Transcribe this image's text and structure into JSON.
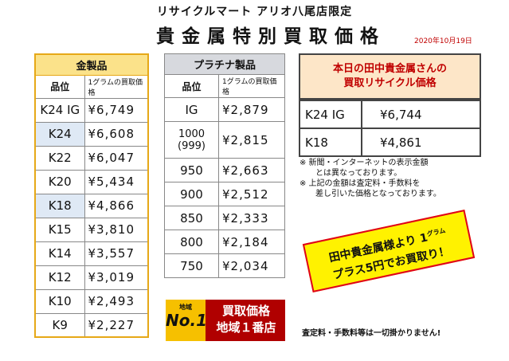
{
  "header": {
    "store": "リサイクルマート アリオ八尾店限定",
    "title": "貴金属特別買取価格",
    "date": "2020年10月19日"
  },
  "gold": {
    "title": "金製品",
    "col_grade": "品位",
    "col_price": "1グラムの買取価格",
    "rows": [
      {
        "grade": "K24 IG",
        "price": "¥6,749"
      },
      {
        "grade": "K24",
        "price": "¥6,608"
      },
      {
        "grade": "K22",
        "price": "¥6,047"
      },
      {
        "grade": "K20",
        "price": "¥5,434"
      },
      {
        "grade": "K18",
        "price": "¥4,866"
      },
      {
        "grade": "K15",
        "price": "¥3,810"
      },
      {
        "grade": "K14",
        "price": "¥3,557"
      },
      {
        "grade": "K12",
        "price": "¥3,019"
      },
      {
        "grade": "K10",
        "price": "¥2,493"
      },
      {
        "grade": "K9",
        "price": "¥2,227"
      }
    ]
  },
  "platinum": {
    "title": "プラチナ製品",
    "col_grade": "品位",
    "col_price": "1グラムの買取価格",
    "rows": [
      {
        "grade": "IG",
        "price": "¥2,879"
      },
      {
        "grade": "1000",
        "grade2": "(999)",
        "price": "¥2,815"
      },
      {
        "grade": "950",
        "price": "¥2,663"
      },
      {
        "grade": "900",
        "price": "¥2,512"
      },
      {
        "grade": "850",
        "price": "¥2,333"
      },
      {
        "grade": "800",
        "price": "¥2,184"
      },
      {
        "grade": "750",
        "price": "¥2,034"
      }
    ]
  },
  "tanaka": {
    "title_line1": "本日の田中貴金属さんの",
    "title_line2": "買取リサイクル価格",
    "rows": [
      {
        "grade": "K24 IG",
        "price": "¥6,744"
      },
      {
        "grade": "K18",
        "price": "¥4,861"
      }
    ]
  },
  "notes": {
    "line1": "※ 新聞・インターネットの表示金額",
    "line2": "とは異なっております。",
    "line3": "※ 上記の金額は査定料・手数料を",
    "line4": "差し引いた価格となっております。"
  },
  "promo": {
    "line1a": "田中貴金属様より 1",
    "unit": "グラム",
    "line2": "プラス5円でお買取り！"
  },
  "badge": {
    "small": "地域",
    "num": "No.1",
    "line1": "買取価格",
    "line2": "地域１番店"
  },
  "footer": "査定料・手数料等は一切掛かりません!",
  "colors": {
    "gold_header": "#fbe28a",
    "gold_border": "#e6a817",
    "platinum_header": "#d7d9de",
    "tanaka_bg": "#fde6c8",
    "accent_red": "#c00000",
    "promo_bg": "#fff200"
  }
}
